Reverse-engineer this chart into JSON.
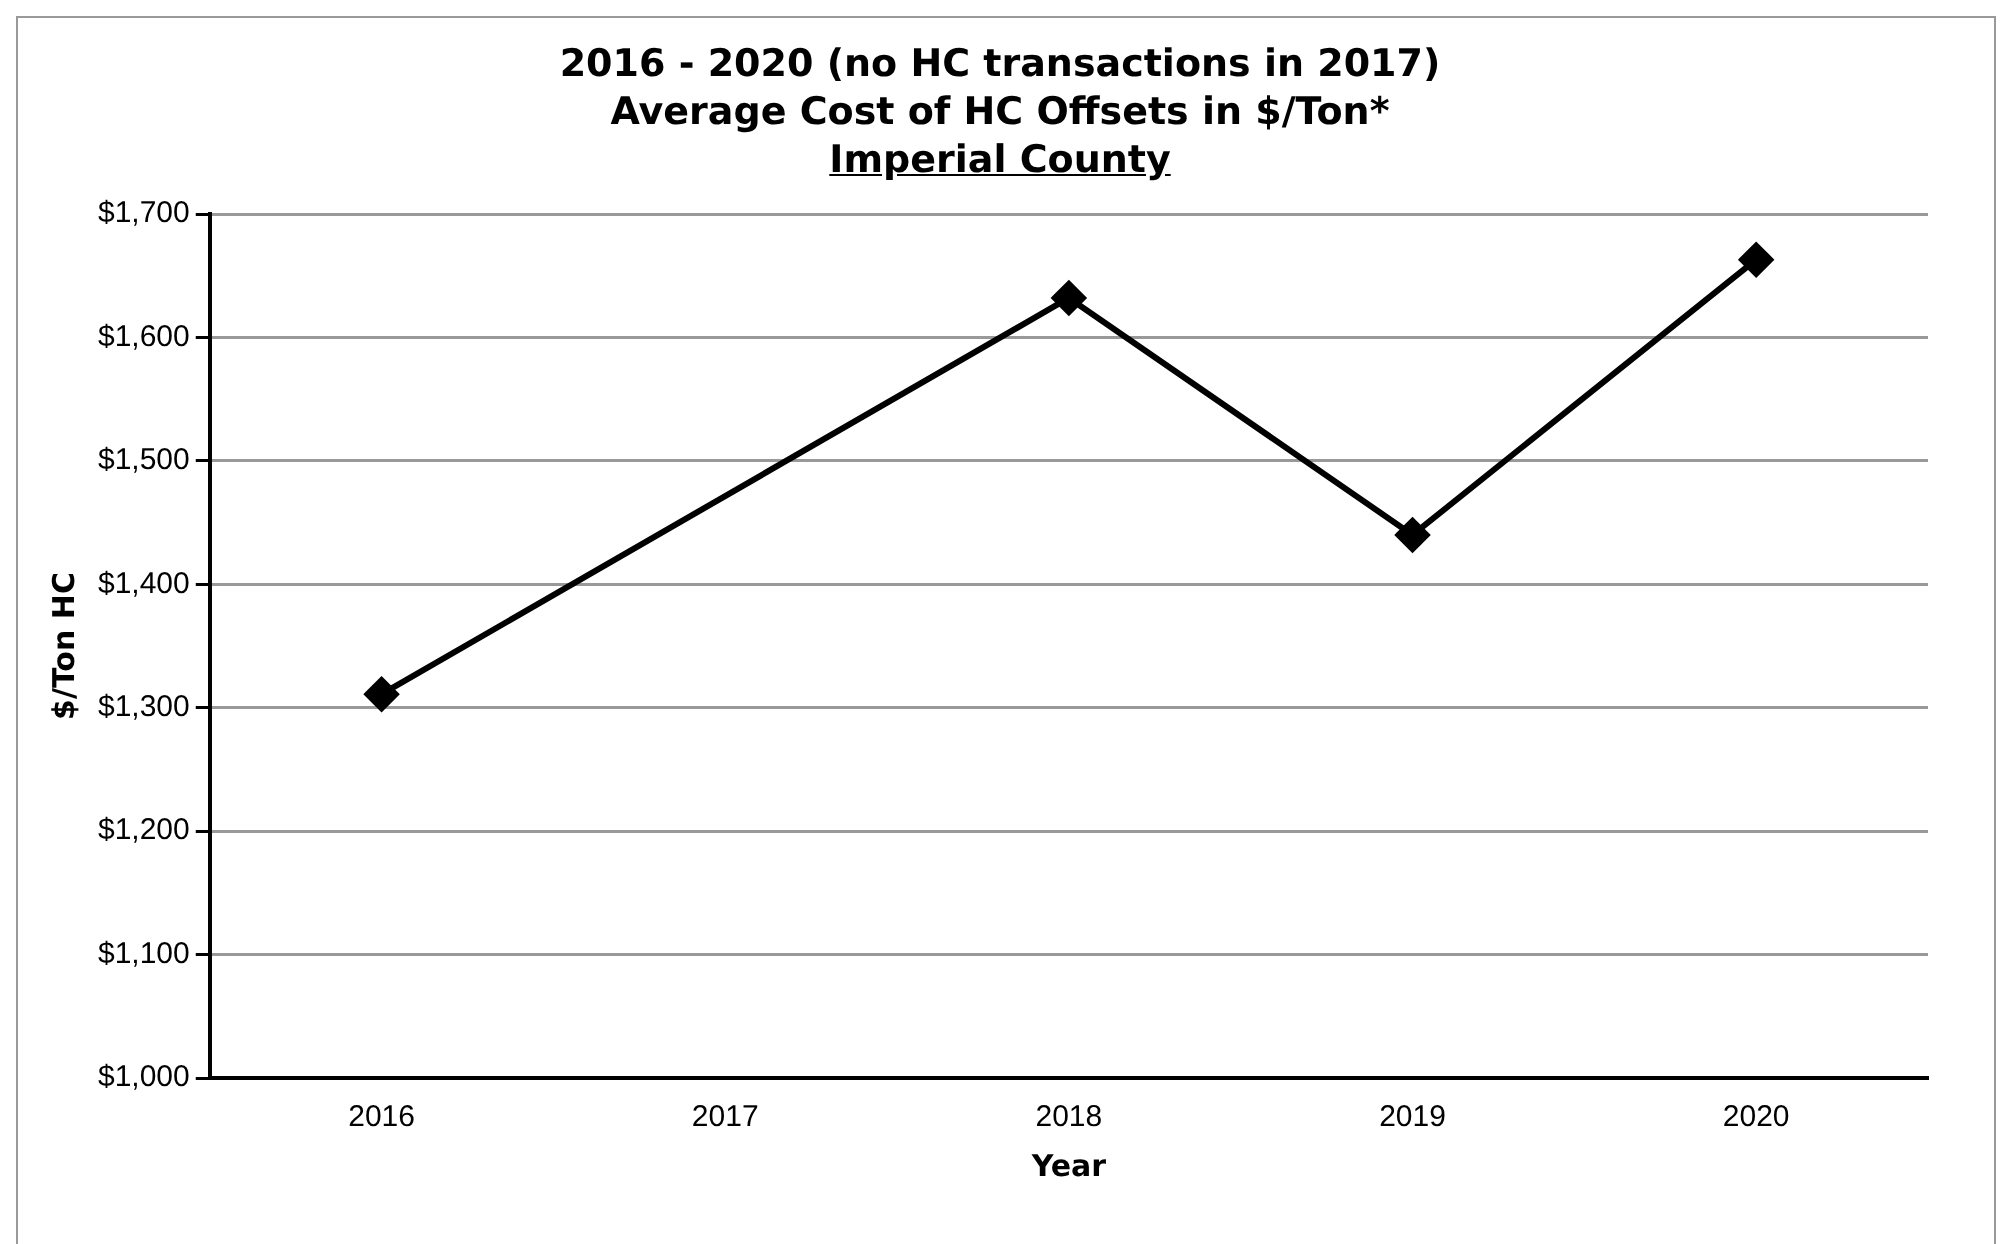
{
  "chart_data": {
    "type": "line",
    "title": "2016 - 2020 (no HC transactions in 2017)\nAverage Cost of HC Offsets in $/Ton*\nImperial County",
    "xlabel": "Year",
    "ylabel": "$/Ton HC",
    "categories": [
      "2016",
      "2017",
      "2018",
      "2019",
      "2020"
    ],
    "series": [
      {
        "color": "#000000",
        "values": [
          1311,
          null,
          1632,
          1440,
          1663
        ]
      }
    ],
    "ylim": [
      1000,
      1700
    ],
    "yticks": [
      {
        "value": 1000,
        "label": "$1,000"
      },
      {
        "value": 1100,
        "label": "$1,100"
      },
      {
        "value": 1200,
        "label": "$1,200"
      },
      {
        "value": 1300,
        "label": "$1,300"
      },
      {
        "value": 1400,
        "label": "$1,400"
      },
      {
        "value": 1500,
        "label": "$1,500"
      },
      {
        "value": 1600,
        "label": "$1,600"
      },
      {
        "value": 1700,
        "label": "$1,700"
      }
    ],
    "grid": "y",
    "legend": false,
    "marker": "diamond",
    "line_style": "solid"
  }
}
